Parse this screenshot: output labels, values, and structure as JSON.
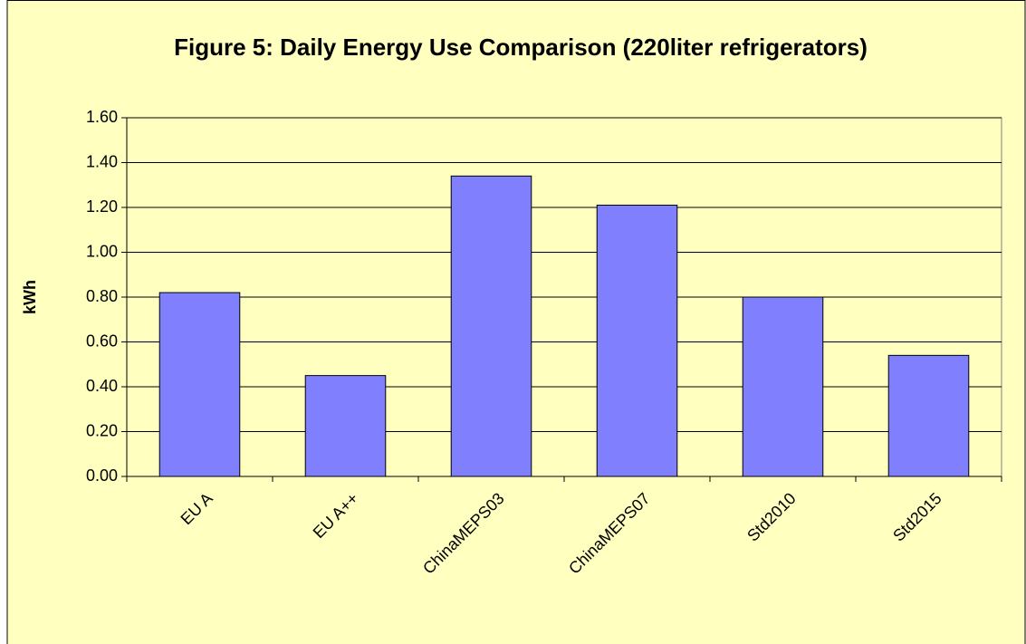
{
  "chart_data": {
    "type": "bar",
    "title": "Figure 5: Daily Energy Use Comparison (220liter refrigerators)",
    "y_label": "kWh",
    "categories": [
      "EU A",
      "EU A++",
      "ChinaMEPS03",
      "ChinaMEPS07",
      "Std2010",
      "Std2015"
    ],
    "values": [
      0.82,
      0.45,
      1.34,
      1.21,
      0.8,
      0.54
    ],
    "color": "#8080ff",
    "ylim": [
      0,
      1.6
    ],
    "yticks": [
      {
        "value": 0,
        "label": "0.00"
      },
      {
        "value": 0.2,
        "label": "0.20"
      },
      {
        "value": 0.4,
        "label": "0.40"
      },
      {
        "value": 0.6,
        "label": "0.60"
      },
      {
        "value": 0.8,
        "label": "0.80"
      },
      {
        "value": 1.0,
        "label": "1.00"
      },
      {
        "value": 1.2,
        "label": "1.20"
      },
      {
        "value": 1.4,
        "label": "1.40"
      },
      {
        "value": 1.6,
        "label": "1.60"
      }
    ],
    "grid": true
  }
}
